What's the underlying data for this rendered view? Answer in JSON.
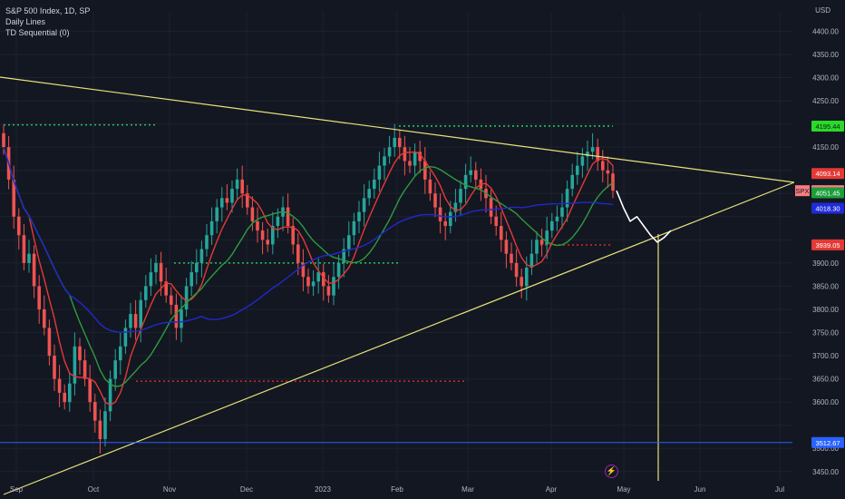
{
  "legend": {
    "symbol": "S&P 500 Index, 1D, SP",
    "indicator_1": "Daily Lines",
    "indicator_2": "TD Sequential (0)"
  },
  "currency": "USD",
  "price_scale": [
    "4400.00",
    "4350.00",
    "4300.00",
    "4250.00",
    "4150.00",
    "3900.00",
    "3850.00",
    "3800.00",
    "3750.00",
    "3700.00",
    "3650.00",
    "3600.00",
    "3500.00",
    "3450.00"
  ],
  "price_tags": [
    {
      "name": "level-4195",
      "text": "4195.44",
      "value": 4195.44,
      "bg": "#2bd92b",
      "fg": "#0b1f0b"
    },
    {
      "name": "level-4093",
      "text": "4093.14",
      "value": 4093.14,
      "bg": "#e53935",
      "fg": "#ffffff"
    },
    {
      "name": "spx-last",
      "text": "4056.00",
      "value": 4056.0,
      "bg": "#f77c80",
      "fg": "#131722",
      "label": "SPX"
    },
    {
      "name": "level-4051",
      "text": "4051.45",
      "value": 4051.45,
      "bg": "#1b9e3a",
      "fg": "#ffffff"
    },
    {
      "name": "level-4018",
      "text": "4018.30",
      "value": 4018.3,
      "bg": "#1f2bd9",
      "fg": "#ffffff"
    },
    {
      "name": "level-3939",
      "text": "3939.05",
      "value": 3939.05,
      "bg": "#e53935",
      "fg": "#ffffff"
    },
    {
      "name": "level-3512",
      "text": "3512.67",
      "value": 3512.67,
      "bg": "#2962ff",
      "fg": "#ffffff"
    }
  ],
  "time_axis": [
    "Sep",
    "Oct",
    "Nov",
    "Dec",
    "2023",
    "Feb",
    "Mar",
    "Apr",
    "May",
    "Jun",
    "Jul"
  ],
  "colors": {
    "up": "#26a69a",
    "down": "#ef5350",
    "trendline": "#e8e27a",
    "ma_blue": "#2029c9",
    "ma_red": "#e53935",
    "ma_green": "#2e9b3e",
    "dotted_green": "#22c55e",
    "dotted_red": "#c62828"
  },
  "chart_data": {
    "type": "candlestick",
    "title": "S&P 500 Index, 1D, SP",
    "ylim": [
      3430,
      4440
    ],
    "x_labels": [
      "Sep",
      "Oct",
      "Nov",
      "Dec",
      "2023",
      "Feb",
      "Mar",
      "Apr",
      "May",
      "Jun",
      "Jul"
    ],
    "close_path": [
      4150,
      4080,
      4000,
      3960,
      3900,
      3920,
      3850,
      3800,
      3760,
      3700,
      3650,
      3620,
      3600,
      3640,
      3720,
      3690,
      3650,
      3600,
      3560,
      3520,
      3580,
      3650,
      3690,
      3720,
      3760,
      3790,
      3760,
      3820,
      3850,
      3880,
      3900,
      3860,
      3830,
      3810,
      3760,
      3800,
      3850,
      3880,
      3900,
      3930,
      3960,
      3990,
      4020,
      4040,
      4030,
      4060,
      4080,
      4050,
      4020,
      3990,
      3970,
      3950,
      3940,
      3980,
      4000,
      4020,
      3980,
      3940,
      3900,
      3870,
      3850,
      3860,
      3880,
      3850,
      3830,
      3870,
      3900,
      3930,
      3960,
      3990,
      4010,
      4040,
      4060,
      4080,
      4110,
      4130,
      4150,
      4170,
      4150,
      4120,
      4110,
      4140,
      4120,
      4080,
      4050,
      4020,
      3990,
      3980,
      4010,
      4030,
      4060,
      4090,
      4100,
      4080,
      4060,
      4040,
      4000,
      3980,
      3950,
      3920,
      3900,
      3870,
      3850,
      3890,
      3920,
      3950,
      3940,
      3970,
      3990,
      4000,
      4020,
      4060,
      4090,
      4110,
      4130,
      4140,
      4150,
      4120,
      4100,
      4093,
      4056
    ],
    "projected_path": [
      4056,
      4020,
      3990,
      4000,
      3980,
      3960,
      3945,
      3955,
      3970
    ],
    "horizontal_levels": [
      4195.44,
      3939.05,
      3512.67
    ],
    "ohlc_last": {
      "close": 4056.0
    }
  },
  "bolt_icon": "lightning-icon"
}
